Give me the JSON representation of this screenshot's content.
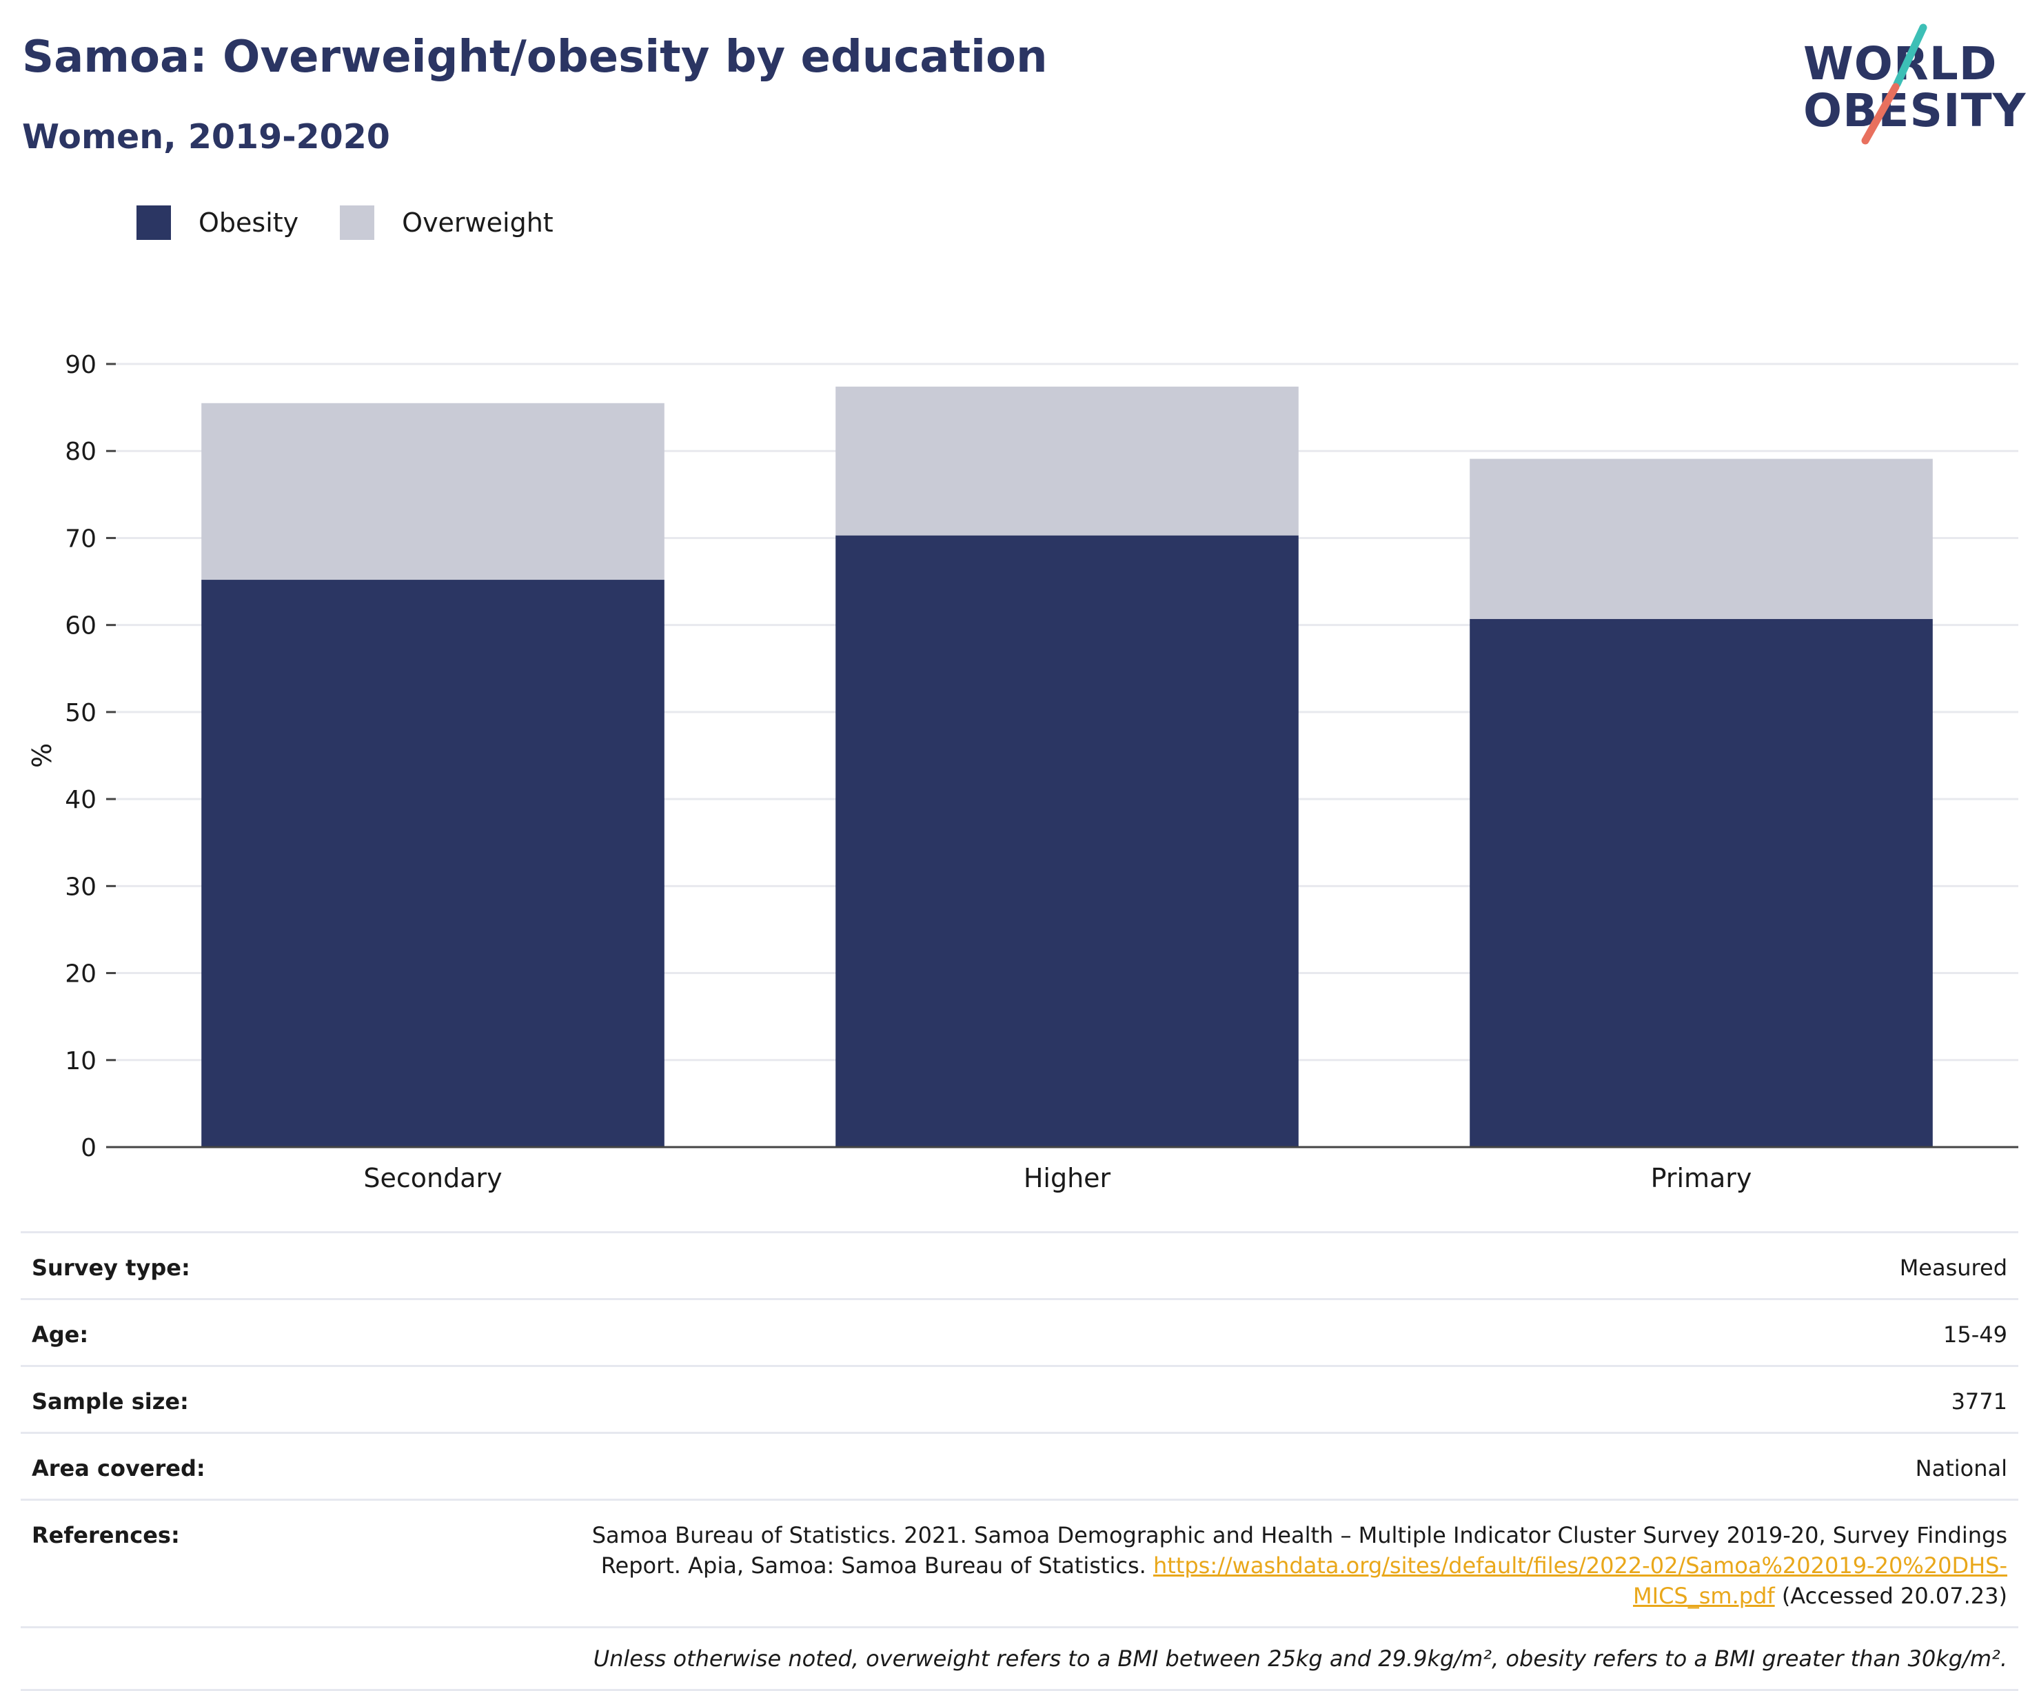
{
  "header": {
    "title": "Samoa: Overweight/obesity by education",
    "subtitle": "Women, 2019-2020"
  },
  "logo": {
    "line1": "WORLD",
    "line2": "OBESITY",
    "accent_colors": [
      "#3dbfb6",
      "#e8705e"
    ]
  },
  "legend": {
    "items": [
      {
        "label": "Obesity",
        "color": "#2b3663"
      },
      {
        "label": "Overweight",
        "color": "#c9cbd6"
      }
    ]
  },
  "chart_data": {
    "type": "bar",
    "stacked": true,
    "categories": [
      "Secondary",
      "Higher",
      "Primary"
    ],
    "series": [
      {
        "name": "Obesity",
        "values": [
          65.2,
          70.3,
          60.7
        ],
        "color": "#2b3663"
      },
      {
        "name": "Overweight",
        "values": [
          20.3,
          17.1,
          18.4
        ],
        "color": "#c9cbd6"
      }
    ],
    "ylabel": "%",
    "ylim": [
      0,
      90
    ],
    "yticks": [
      0,
      10,
      20,
      30,
      40,
      50,
      60,
      70,
      80,
      90
    ],
    "grid": true,
    "legend_position": "top-left"
  },
  "info": {
    "rows": [
      {
        "key": "Survey type:",
        "value": "Measured"
      },
      {
        "key": "Age:",
        "value": "15-49"
      },
      {
        "key": "Sample size:",
        "value": "3771"
      },
      {
        "key": "Area covered:",
        "value": "National"
      }
    ],
    "references_key": "References:",
    "references_text": "Samoa Bureau of Statistics. 2021. Samoa Demographic and Health – Multiple Indicator Cluster Survey 2019-20, Survey Findings Report. Apia, Samoa: Samoa Bureau of Statistics.",
    "references_link": "https://washdata.org/sites/default/files/2022-02/Samoa%202019-20%20DHS-MICS_sm.pdf",
    "references_suffix": "(Accessed 20.07.23)",
    "footnote": "Unless otherwise noted, overweight refers to a BMI between 25kg and 29.9kg/m², obesity refers to a BMI greater than 30kg/m²."
  }
}
